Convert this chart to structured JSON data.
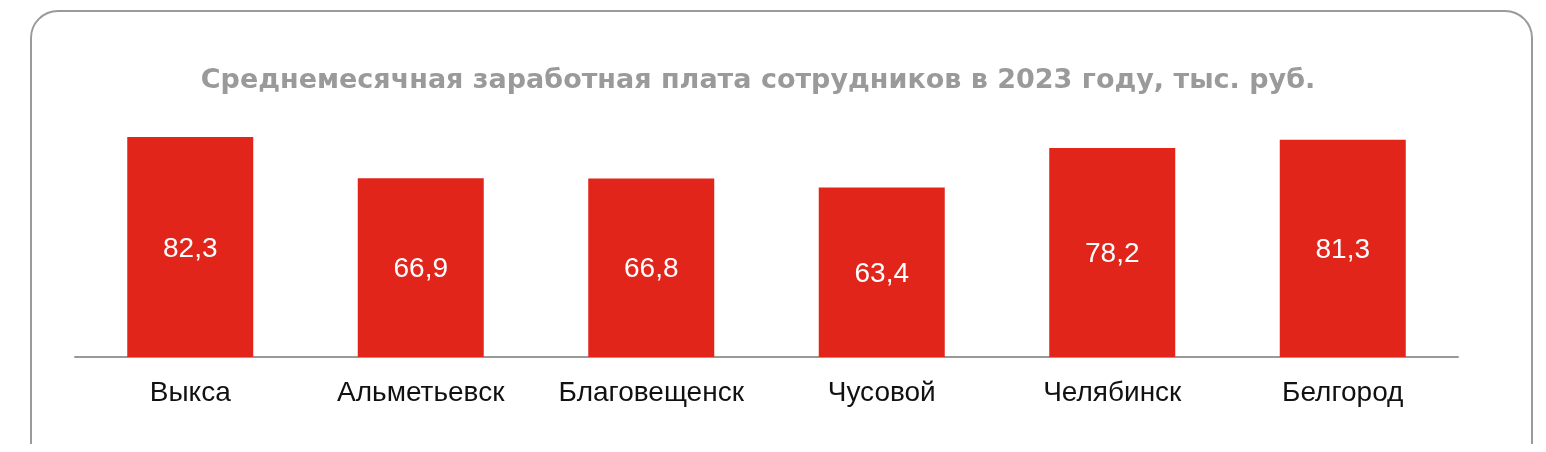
{
  "chart_data": {
    "type": "bar",
    "title": "Среднемесячная заработная плата сотрудников в 2023 году, тыс. руб.",
    "categories": [
      "Выкса",
      "Альметьевск",
      "Благовещенск",
      "Чусовой",
      "Челябинск",
      "Белгород"
    ],
    "values": [
      82.3,
      66.9,
      66.8,
      63.4,
      78.2,
      81.3
    ],
    "value_labels": [
      "82,3",
      "66,9",
      "66,8",
      "63,4",
      "78,2",
      "81,3"
    ],
    "color": "#e1251b"
  }
}
